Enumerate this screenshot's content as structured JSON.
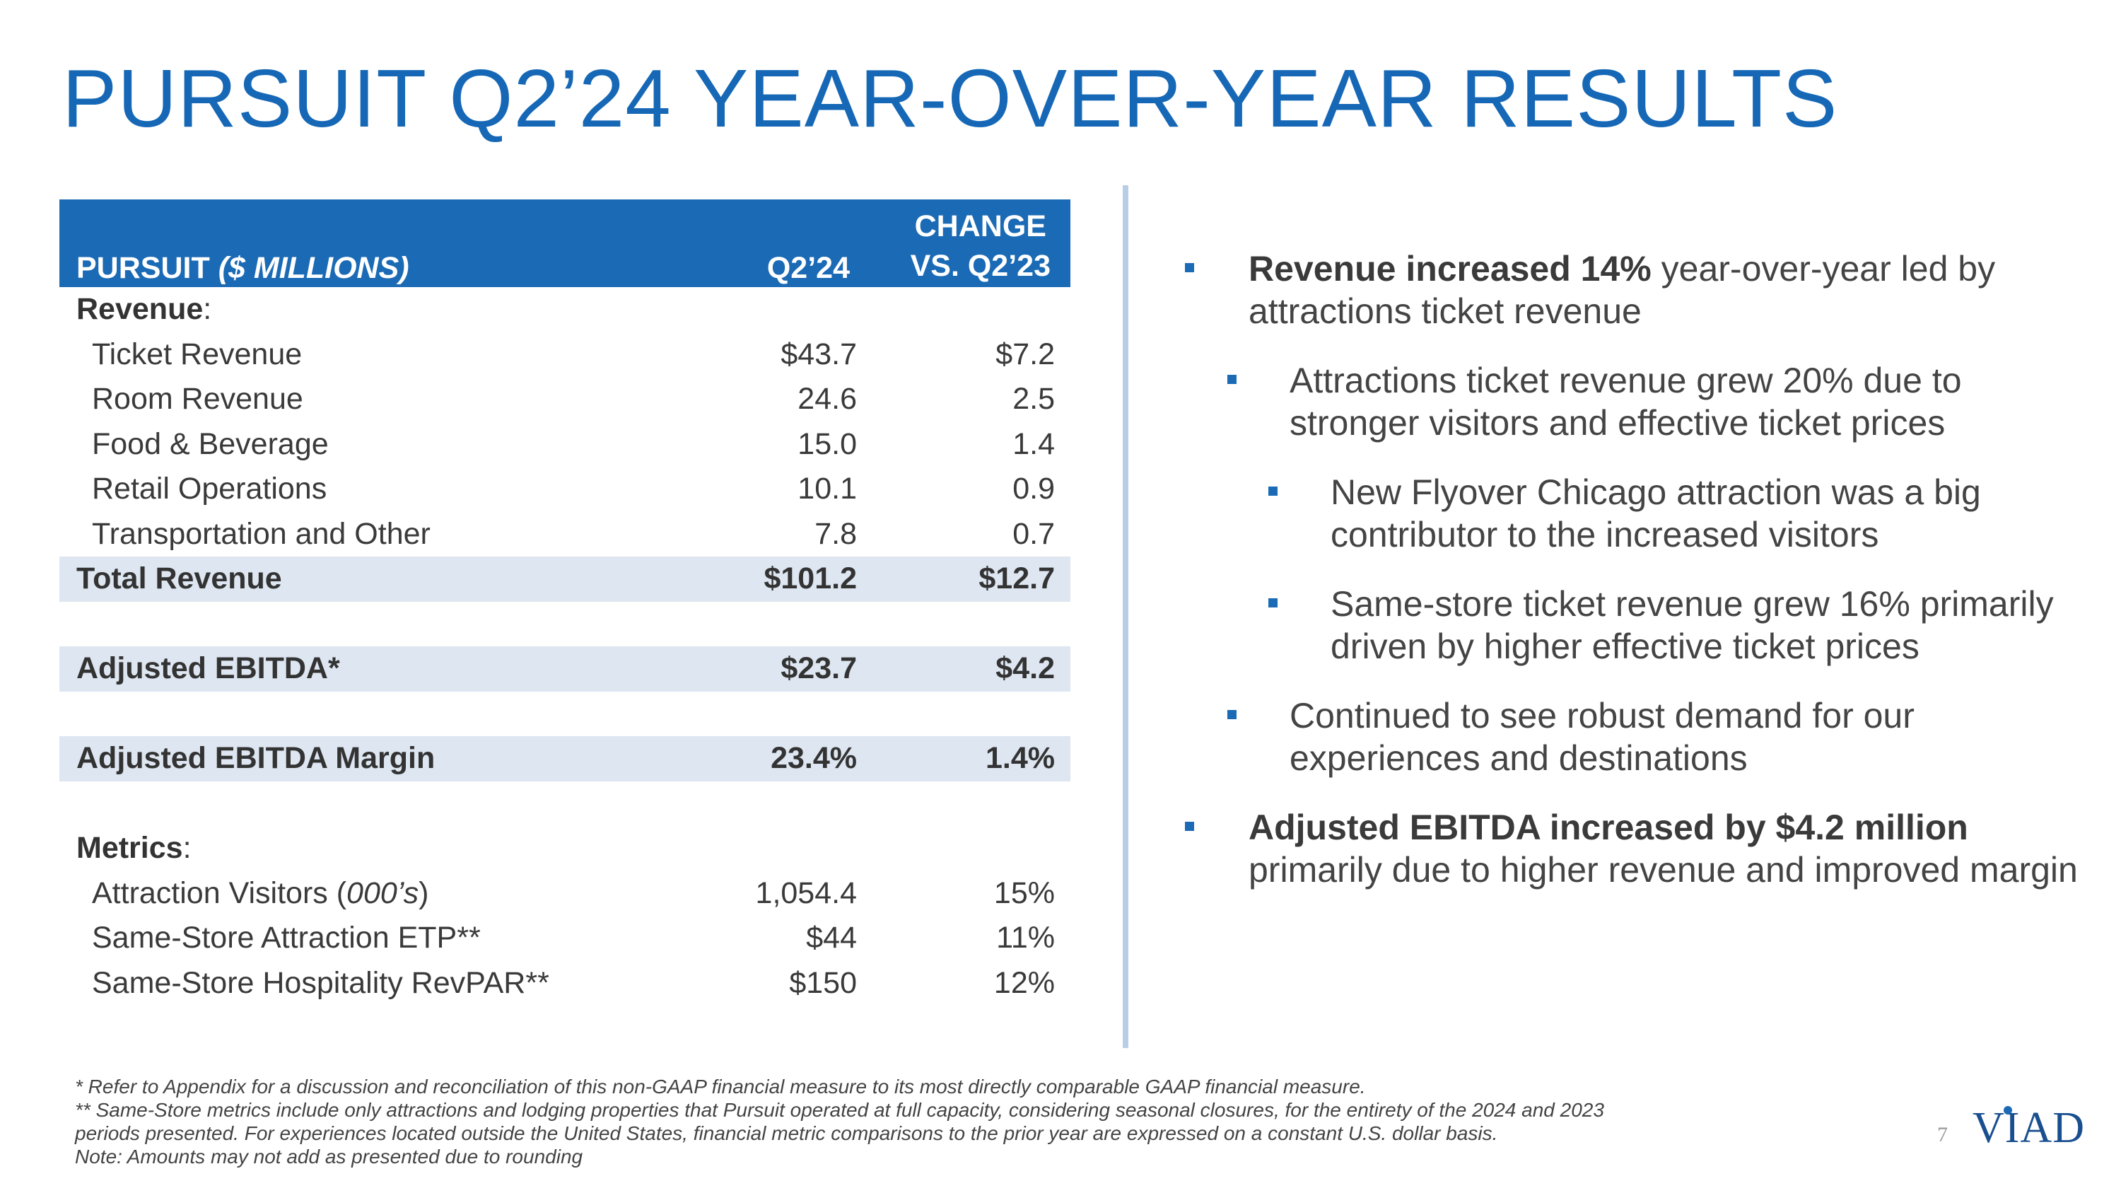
{
  "title": "PURSUIT Q2’24 YEAR-OVER-YEAR RESULTS",
  "table": {
    "header": {
      "label_main": "PURSUIT ",
      "label_unit": "($ MILLIONS)",
      "col1": "Q2’24",
      "col2_line1": "CHANGE",
      "col2_line2": "VS. Q2’23"
    },
    "revenue_label": "Revenue",
    "revenue_rows": [
      {
        "label": "Ticket Revenue",
        "q2": "$43.7",
        "change": "$7.2"
      },
      {
        "label": "Room Revenue",
        "q2": "24.6",
        "change": "2.5"
      },
      {
        "label": "Food & Beverage",
        "q2": "15.0",
        "change": "1.4"
      },
      {
        "label": "Retail Operations",
        "q2": "10.1",
        "change": "0.9"
      },
      {
        "label": "Transportation and Other",
        "q2": "7.8",
        "change": "0.7"
      }
    ],
    "total_revenue": {
      "label": "Total Revenue",
      "q2": "$101.2",
      "change": "$12.7"
    },
    "adj_ebitda": {
      "label": "Adjusted EBITDA*",
      "q2": "$23.7",
      "change": "$4.2"
    },
    "adj_ebitda_margin": {
      "label": "Adjusted EBITDA Margin",
      "q2": "23.4%",
      "change": "1.4%"
    },
    "metrics_label": "Metrics",
    "metrics_rows": [
      {
        "label_pre": "Attraction Visitors (",
        "label_ital": "000’s",
        "label_post": ")",
        "q2": "1,054.4",
        "change": "15%"
      },
      {
        "label": "Same-Store Attraction ETP**",
        "q2": "$44",
        "change": "11%"
      },
      {
        "label": "Same-Store Hospitality RevPAR**",
        "q2": "$150",
        "change": "12%"
      }
    ]
  },
  "bullets": [
    {
      "bold": "Revenue increased 14%",
      "text": " year-over-year led by attractions ticket revenue"
    },
    {
      "text": "Attractions ticket revenue grew 20% due to stronger visitors and effective ticket prices"
    },
    {
      "text": "New Flyover Chicago attraction was a big contributor to the increased visitors"
    },
    {
      "text": "Same-store ticket revenue grew 16% primarily driven by higher effective ticket prices"
    },
    {
      "text": "Continued to see robust demand for our experiences and destinations"
    },
    {
      "bold": "Adjusted EBITDA increased by $4.2 million",
      "text": " primarily due to higher revenue and improved margin"
    }
  ],
  "footnotes": [
    "* Refer to Appendix for a discussion and reconciliation of this non-GAAP financial measure to its most directly comparable GAAP financial measure.",
    "** Same-Store metrics include only attractions and lodging properties that Pursuit operated at full capacity, considering seasonal closures, for the entirety of the 2024 and 2023",
    "periods presented. For experiences located outside the United States, financial metric comparisons to the prior year are expressed on a constant U.S. dollar basis.",
    "Note: Amounts may not add as presented due to rounding"
  ],
  "page_number": "7",
  "logo_text": "VIAD",
  "colors": {
    "accent": "#1668b6",
    "header_bg": "#1a6ab5",
    "row_shade": "#dde6f1",
    "divider": "#b8cde6"
  }
}
